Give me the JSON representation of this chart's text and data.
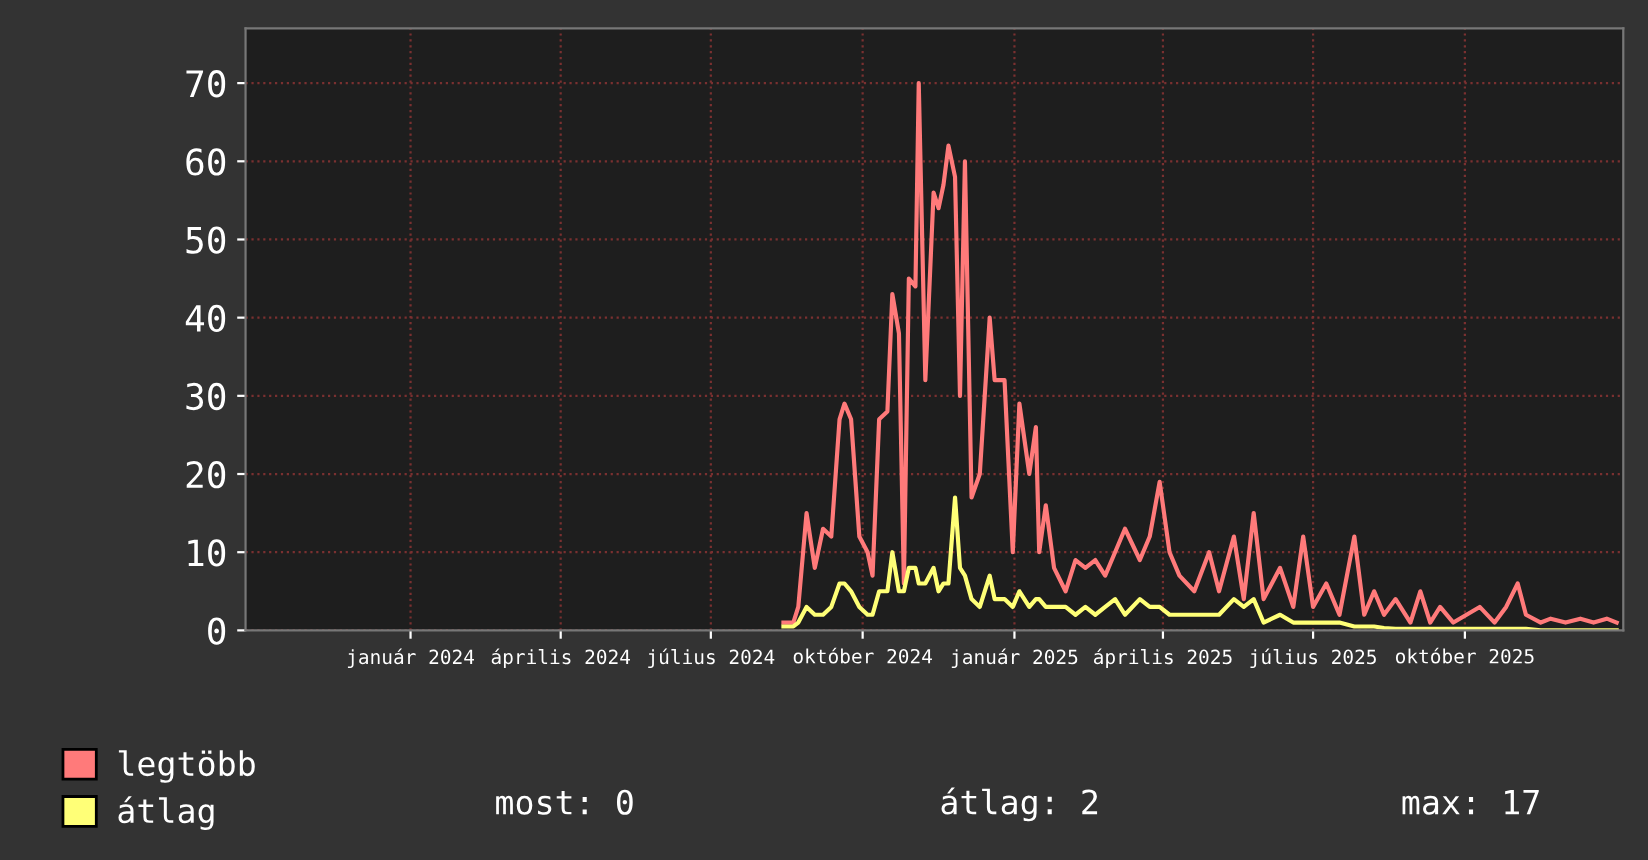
{
  "chart_data": {
    "type": "line",
    "x": [
      "2024-08-14",
      "2024-08-20",
      "2024-08-23",
      "2024-08-28",
      "2024-09-02",
      "2024-09-07",
      "2024-09-12",
      "2024-09-17",
      "2024-09-20",
      "2024-09-24",
      "2024-09-29",
      "2024-10-04",
      "2024-10-07",
      "2024-10-11",
      "2024-10-16",
      "2024-10-19",
      "2024-10-23",
      "2024-10-26",
      "2024-10-29",
      "2024-11-02",
      "2024-11-04",
      "2024-11-08",
      "2024-11-13",
      "2024-11-16",
      "2024-11-19",
      "2024-11-22",
      "2024-11-26",
      "2024-11-29",
      "2024-12-02",
      "2024-12-06",
      "2024-12-11",
      "2024-12-17",
      "2024-12-20",
      "2024-12-26",
      "2024-12-31",
      "2025-01-04",
      "2025-01-10",
      "2025-01-14",
      "2025-01-16",
      "2025-01-20",
      "2025-01-25",
      "2025-02-01",
      "2025-02-07",
      "2025-02-13",
      "2025-02-19",
      "2025-02-25",
      "2025-03-03",
      "2025-03-09",
      "2025-03-18",
      "2025-03-24",
      "2025-03-30",
      "2025-04-05",
      "2025-04-11",
      "2025-04-20",
      "2025-04-29",
      "2025-05-05",
      "2025-05-14",
      "2025-05-20",
      "2025-05-26",
      "2025-06-01",
      "2025-06-06",
      "2025-06-11",
      "2025-06-19",
      "2025-06-25",
      "2025-07-01",
      "2025-07-09",
      "2025-07-17",
      "2025-07-26",
      "2025-08-01",
      "2025-08-07",
      "2025-08-13",
      "2025-08-20",
      "2025-08-29",
      "2025-09-04",
      "2025-09-10",
      "2025-09-16",
      "2025-09-24",
      "2025-10-02",
      "2025-10-10",
      "2025-10-19",
      "2025-10-26",
      "2025-11-02",
      "2025-11-07",
      "2025-11-16",
      "2025-11-22",
      "2025-12-01",
      "2025-12-10",
      "2025-12-18",
      "2025-12-26",
      "2026-01-01"
    ],
    "series": [
      {
        "name": "legtöbb",
        "color": "#ff7a7a",
        "values": [
          1,
          1,
          3,
          15,
          8,
          13,
          12,
          27,
          29,
          27,
          12,
          10,
          7,
          27,
          28,
          43,
          38,
          6,
          45,
          44,
          70,
          32,
          56,
          54,
          57,
          62,
          58,
          30,
          60,
          17,
          20,
          40,
          32,
          32,
          10,
          29,
          20,
          26,
          10,
          16,
          8,
          5,
          9,
          8,
          9,
          7,
          10,
          13,
          9,
          12,
          19,
          10,
          7,
          5,
          10,
          5,
          12,
          4,
          15,
          4,
          6,
          8,
          3,
          12,
          3,
          6,
          2,
          12,
          2,
          5,
          2,
          4,
          1,
          5,
          1,
          3,
          1,
          2,
          3,
          1,
          3,
          6,
          2,
          1,
          1.5,
          1,
          1.5,
          1,
          1.5,
          1
        ]
      },
      {
        "name": "átlag",
        "color": "#ffff77",
        "values": [
          0.5,
          0.5,
          1,
          3,
          2,
          2,
          3,
          6,
          6,
          5,
          3,
          2,
          2,
          5,
          5,
          10,
          5,
          5,
          8,
          8,
          6,
          6,
          8,
          5,
          6,
          6,
          17,
          8,
          7,
          4,
          3,
          7,
          4,
          4,
          3,
          5,
          3,
          4,
          4,
          3,
          3,
          3,
          2,
          3,
          2,
          3,
          4,
          2,
          4,
          3,
          3,
          2,
          2,
          2,
          2,
          2,
          4,
          3,
          4,
          1,
          1.5,
          2,
          1,
          1,
          1,
          1,
          1,
          0.5,
          0.5,
          0.5,
          0.3,
          0.2,
          0.2,
          0.2,
          0.2,
          0.2,
          0.2,
          0.2,
          0.2,
          0.2,
          0.2,
          0.2,
          0.2,
          0,
          0,
          0,
          0,
          0,
          0,
          0
        ]
      }
    ],
    "xlim": [
      "2023-09-23",
      "2026-01-05"
    ],
    "xticks": [
      {
        "value": "2024-01-01",
        "label": "január 2024"
      },
      {
        "value": "2024-04-01",
        "label": "április 2024"
      },
      {
        "value": "2024-07-01",
        "label": "július 2024"
      },
      {
        "value": "2024-10-01",
        "label": "október 2024"
      },
      {
        "value": "2025-01-01",
        "label": "január 2025"
      },
      {
        "value": "2025-04-01",
        "label": "április 2025"
      },
      {
        "value": "2025-07-01",
        "label": "július 2025"
      },
      {
        "value": "2025-10-01",
        "label": "október 2025"
      }
    ],
    "ylim": [
      0,
      77
    ],
    "yticks": [
      0,
      10,
      20,
      30,
      40,
      50,
      60,
      70
    ],
    "grid": true,
    "legend": "bottom left",
    "line_style": "solid",
    "marker": "none",
    "annotations": [
      "most: 0",
      "átlag: 2",
      "max: 17"
    ]
  }
}
